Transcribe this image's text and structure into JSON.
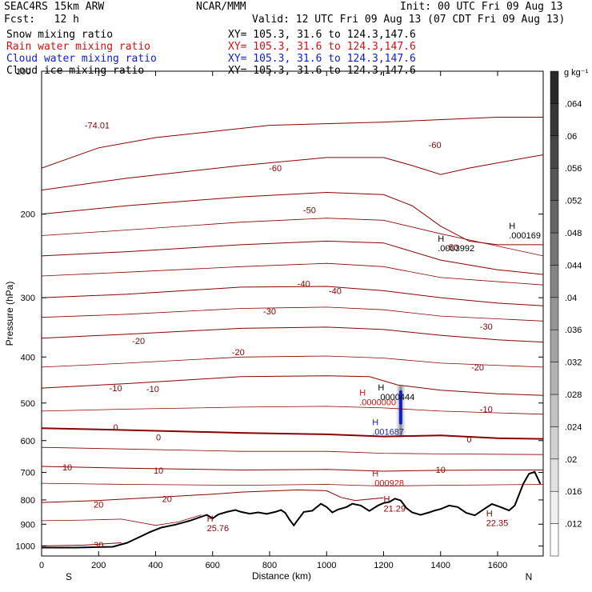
{
  "header": {
    "model": "SEAC4RS 15km ARW",
    "org": "NCAR/MMM",
    "init": "Init: 00 UTC Fri 09 Aug 13",
    "fcst": "Fcst:   12 h",
    "valid": "Valid: 12 UTC Fri 09 Aug 13 (07 CDT Fri 09 Aug 13)",
    "fields": [
      {
        "name": "Snow mixing ratio",
        "xy": "XY= 105.3, 31.6 to 124.3,147.6",
        "color": "#000000"
      },
      {
        "name": "Rain water mixing ratio",
        "xy": "XY= 105.3, 31.6 to 124.3,147.6",
        "color": "#d01010"
      },
      {
        "name": "Cloud water mixing ratio",
        "xy": "XY= 105.3, 31.6 to 124.3,147.6",
        "color": "#1020d0"
      },
      {
        "name": "Cloud ice mixing ratio",
        "xy": "XY= 105.3, 31.6 to 124.3,147.6",
        "color": "#000000"
      }
    ]
  },
  "chart_data": {
    "type": "line",
    "xlabel": "Distance (km)",
    "ylabel": "Pressure (hPa)",
    "xlim": [
      0,
      1760
    ],
    "ylim": [
      100,
      1050
    ],
    "yscale": "log",
    "x_ticks": [
      0,
      200,
      400,
      600,
      800,
      1000,
      1200,
      1400,
      1600
    ],
    "y_ticks": [
      200,
      300,
      400,
      500,
      600,
      700,
      800,
      900,
      1000
    ],
    "y_top_label": "100",
    "x_end_labels": {
      "left": "S",
      "right": "N"
    },
    "colorbar": {
      "unit": "g kg⁻¹",
      "ticks": [
        ".012",
        ".016",
        ".02",
        ".024",
        ".028",
        ".032",
        ".036",
        ".04",
        ".044",
        ".048",
        ".052",
        ".056",
        ".06",
        ".064"
      ],
      "range": [
        0.008,
        0.068
      ]
    },
    "terrain_color": "#000000",
    "contour_color": "#8b0000",
    "terrain": [
      [
        0,
        1008
      ],
      [
        120,
        1008
      ],
      [
        250,
        1004
      ],
      [
        300,
        985
      ],
      [
        340,
        960
      ],
      [
        380,
        935
      ],
      [
        420,
        915
      ],
      [
        470,
        902
      ],
      [
        520,
        885
      ],
      [
        560,
        868
      ],
      [
        580,
        860
      ],
      [
        600,
        875
      ],
      [
        620,
        858
      ],
      [
        650,
        848
      ],
      [
        680,
        840
      ],
      [
        700,
        848
      ],
      [
        730,
        855
      ],
      [
        760,
        850
      ],
      [
        790,
        856
      ],
      [
        820,
        848
      ],
      [
        840,
        840
      ],
      [
        855,
        852
      ],
      [
        870,
        880
      ],
      [
        885,
        905
      ],
      [
        900,
        880
      ],
      [
        920,
        848
      ],
      [
        950,
        843
      ],
      [
        980,
        815
      ],
      [
        1000,
        828
      ],
      [
        1020,
        850
      ],
      [
        1040,
        838
      ],
      [
        1070,
        828
      ],
      [
        1090,
        815
      ],
      [
        1120,
        822
      ],
      [
        1150,
        844
      ],
      [
        1180,
        822
      ],
      [
        1200,
        812
      ],
      [
        1220,
        808
      ],
      [
        1240,
        795
      ],
      [
        1260,
        802
      ],
      [
        1280,
        832
      ],
      [
        1300,
        850
      ],
      [
        1330,
        860
      ],
      [
        1360,
        850
      ],
      [
        1380,
        842
      ],
      [
        1400,
        836
      ],
      [
        1430,
        822
      ],
      [
        1460,
        828
      ],
      [
        1490,
        852
      ],
      [
        1520,
        862
      ],
      [
        1550,
        838
      ],
      [
        1580,
        816
      ],
      [
        1610,
        828
      ],
      [
        1640,
        842
      ],
      [
        1660,
        822
      ],
      [
        1690,
        740
      ],
      [
        1710,
        705
      ],
      [
        1730,
        698
      ],
      [
        1750,
        740
      ]
    ],
    "isotherms": [
      {
        "label": "-74.01",
        "pts": [
          [
            0,
            160
          ],
          [
            200,
            145
          ],
          [
            400,
            138
          ],
          [
            800,
            130
          ],
          [
            1200,
            128
          ],
          [
            1600,
            125
          ],
          [
            1760,
            125
          ]
        ]
      },
      {
        "label": "-60",
        "pts": [
          [
            0,
            178
          ],
          [
            300,
            168
          ],
          [
            700,
            158
          ],
          [
            1000,
            152
          ],
          [
            1200,
            152
          ],
          [
            1300,
            158
          ],
          [
            1400,
            165
          ],
          [
            1500,
            160
          ],
          [
            1600,
            156
          ],
          [
            1760,
            150
          ]
        ]
      },
      {
        "label": "-50",
        "pts": [
          [
            0,
            200
          ],
          [
            300,
            192
          ],
          [
            700,
            184
          ],
          [
            1000,
            180
          ],
          [
            1200,
            182
          ],
          [
            1300,
            192
          ],
          [
            1400,
            212
          ],
          [
            1500,
            228
          ],
          [
            1600,
            232
          ],
          [
            1760,
            232
          ]
        ]
      },
      {
        "label": "-40",
        "pts": [
          [
            0,
            245
          ],
          [
            300,
            240
          ],
          [
            700,
            232
          ],
          [
            1000,
            228
          ],
          [
            1200,
            230
          ],
          [
            1400,
            250
          ],
          [
            1600,
            262
          ],
          [
            1760,
            268
          ]
        ]
      },
      {
        "label": "-30",
        "pts": [
          [
            0,
            300
          ],
          [
            300,
            295
          ],
          [
            700,
            285
          ],
          [
            1000,
            284
          ],
          [
            1200,
            290
          ],
          [
            1400,
            300
          ],
          [
            1600,
            308
          ],
          [
            1760,
            312
          ]
        ]
      },
      {
        "label": "-20",
        "pts": [
          [
            0,
            365
          ],
          [
            300,
            358
          ],
          [
            700,
            348
          ],
          [
            1000,
            346
          ],
          [
            1200,
            350
          ],
          [
            1400,
            360
          ],
          [
            1600,
            368
          ],
          [
            1760,
            372
          ]
        ]
      },
      {
        "label": "-10",
        "pts": [
          [
            0,
            465
          ],
          [
            300,
            455
          ],
          [
            700,
            440
          ],
          [
            1000,
            438
          ],
          [
            1150,
            440
          ],
          [
            1250,
            458
          ],
          [
            1400,
            470
          ],
          [
            1600,
            478
          ],
          [
            1760,
            482
          ]
        ]
      },
      {
        "label": "0",
        "pts": [
          [
            0,
            565
          ],
          [
            300,
            570
          ],
          [
            700,
            578
          ],
          [
            1000,
            582
          ],
          [
            1200,
            588
          ],
          [
            1400,
            585
          ],
          [
            1600,
            593
          ],
          [
            1760,
            595
          ]
        ]
      },
      {
        "label": "10",
        "pts": [
          [
            0,
            680
          ],
          [
            300,
            686
          ],
          [
            700,
            692
          ],
          [
            1000,
            690
          ],
          [
            1200,
            696
          ],
          [
            1400,
            693
          ],
          [
            1600,
            692
          ],
          [
            1760,
            692
          ]
        ]
      },
      {
        "label": "20",
        "pts": [
          [
            0,
            810
          ],
          [
            200,
            802
          ],
          [
            400,
            790
          ],
          [
            600,
            778
          ],
          [
            700,
            770
          ],
          [
            900,
            762
          ],
          [
            1000,
            765
          ],
          [
            1050,
            790
          ],
          [
            1100,
            802
          ],
          [
            1200,
            792
          ]
        ]
      },
      {
        "label": "30",
        "pts": [
          [
            0,
            1000
          ],
          [
            150,
            996
          ],
          [
            280,
            985
          ]
        ]
      }
    ],
    "moist_lines": [
      [
        [
          0,
          520
        ],
        [
          300,
          515
        ],
        [
          700,
          510
        ],
        [
          1000,
          508
        ],
        [
          1200,
          512
        ],
        [
          1400,
          520
        ],
        [
          1760,
          528
        ]
      ],
      [
        [
          0,
          620
        ],
        [
          300,
          625
        ],
        [
          700,
          632
        ],
        [
          1000,
          632
        ],
        [
          1200,
          638
        ],
        [
          1400,
          640
        ],
        [
          1760,
          642
        ]
      ],
      [
        [
          0,
          738
        ],
        [
          300,
          742
        ],
        [
          700,
          745
        ],
        [
          1000,
          742
        ],
        [
          1200,
          748
        ],
        [
          1400,
          745
        ],
        [
          1760,
          742
        ]
      ],
      [
        [
          0,
          885
        ],
        [
          150,
          882
        ],
        [
          280,
          878
        ],
        [
          400,
          905
        ],
        [
          480,
          890
        ],
        [
          560,
          860
        ]
      ],
      [
        [
          0,
          420
        ],
        [
          300,
          412
        ],
        [
          700,
          400
        ],
        [
          1000,
          398
        ],
        [
          1200,
          402
        ],
        [
          1400,
          412
        ],
        [
          1760,
          420
        ]
      ],
      [
        [
          0,
          330
        ],
        [
          300,
          325
        ],
        [
          700,
          316
        ],
        [
          1000,
          314
        ],
        [
          1200,
          318
        ],
        [
          1400,
          328
        ],
        [
          1760,
          336
        ]
      ],
      [
        [
          0,
          270
        ],
        [
          300,
          265
        ],
        [
          700,
          258
        ],
        [
          1000,
          254
        ],
        [
          1200,
          258
        ],
        [
          1400,
          272
        ],
        [
          1760,
          282
        ]
      ],
      [
        [
          0,
          222
        ],
        [
          300,
          216
        ],
        [
          700,
          208
        ],
        [
          1000,
          204
        ],
        [
          1200,
          206
        ],
        [
          1400,
          220
        ],
        [
          1760,
          245
        ]
      ]
    ],
    "contour_labels": [
      {
        "text": "-74.01",
        "x": 195,
        "p": 130
      },
      {
        "text": "-60",
        "x": 1380,
        "p": 143
      },
      {
        "text": "-60",
        "x": 820,
        "p": 160
      },
      {
        "text": "-50",
        "x": 940,
        "p": 196
      },
      {
        "text": "-50",
        "x": 1440,
        "p": 235
      },
      {
        "text": "-40",
        "x": 920,
        "p": 280
      },
      {
        "text": "-40",
        "x": 1030,
        "p": 290
      },
      {
        "text": "-30",
        "x": 800,
        "p": 320
      },
      {
        "text": "-30",
        "x": 1560,
        "p": 345
      },
      {
        "text": "-20",
        "x": 340,
        "p": 370
      },
      {
        "text": "-20",
        "x": 690,
        "p": 390
      },
      {
        "text": "-20",
        "x": 1530,
        "p": 420
      },
      {
        "text": "-10",
        "x": 260,
        "p": 465
      },
      {
        "text": "-10",
        "x": 390,
        "p": 467
      },
      {
        "text": "-10",
        "x": 1560,
        "p": 515
      },
      {
        "text": "0",
        "x": 260,
        "p": 562
      },
      {
        "text": "0",
        "x": 410,
        "p": 590
      },
      {
        "text": "0",
        "x": 1500,
        "p": 596
      },
      {
        "text": "10",
        "x": 90,
        "p": 683
      },
      {
        "text": "10",
        "x": 410,
        "p": 693
      },
      {
        "text": "10",
        "x": 1400,
        "p": 690
      },
      {
        "text": "20",
        "x": 200,
        "p": 818
      },
      {
        "text": "20",
        "x": 440,
        "p": 795
      },
      {
        "text": "30",
        "x": 200,
        "p": 995
      }
    ],
    "extrema": [
      {
        "mark": "H",
        "value": ".000169",
        "x": 1640,
        "p": 218,
        "color": "#000000"
      },
      {
        "mark": "H",
        "value": ".0003992",
        "x": 1390,
        "p": 232,
        "color": "#000000"
      },
      {
        "mark": "H",
        "value": ".0000444",
        "x": 1180,
        "p": 478,
        "color": "#000000"
      },
      {
        "mark": "H",
        "value": ".0000000",
        "x": 1115,
        "p": 490,
        "color": "#d01010"
      },
      {
        "mark": "H",
        "value": ".001687",
        "x": 1160,
        "p": 565,
        "color": "#1020d0"
      },
      {
        "mark": "H",
        "value": ".000928",
        "x": 1160,
        "p": 725,
        "color": "#d01010"
      },
      {
        "mark": "H",
        "value": "21.29",
        "x": 1200,
        "p": 820,
        "color": "#8b0000"
      },
      {
        "mark": "H",
        "value": "22.35",
        "x": 1560,
        "p": 880,
        "color": "#8b0000"
      },
      {
        "mark": "H",
        "value": "25.76",
        "x": 580,
        "p": 902,
        "color": "#8b0000"
      }
    ],
    "cloud": {
      "x": 1260,
      "p_top": 460,
      "p_bottom": 590,
      "core_p_top": 470,
      "core_p_bottom": 555,
      "color": "#1020d0"
    }
  }
}
